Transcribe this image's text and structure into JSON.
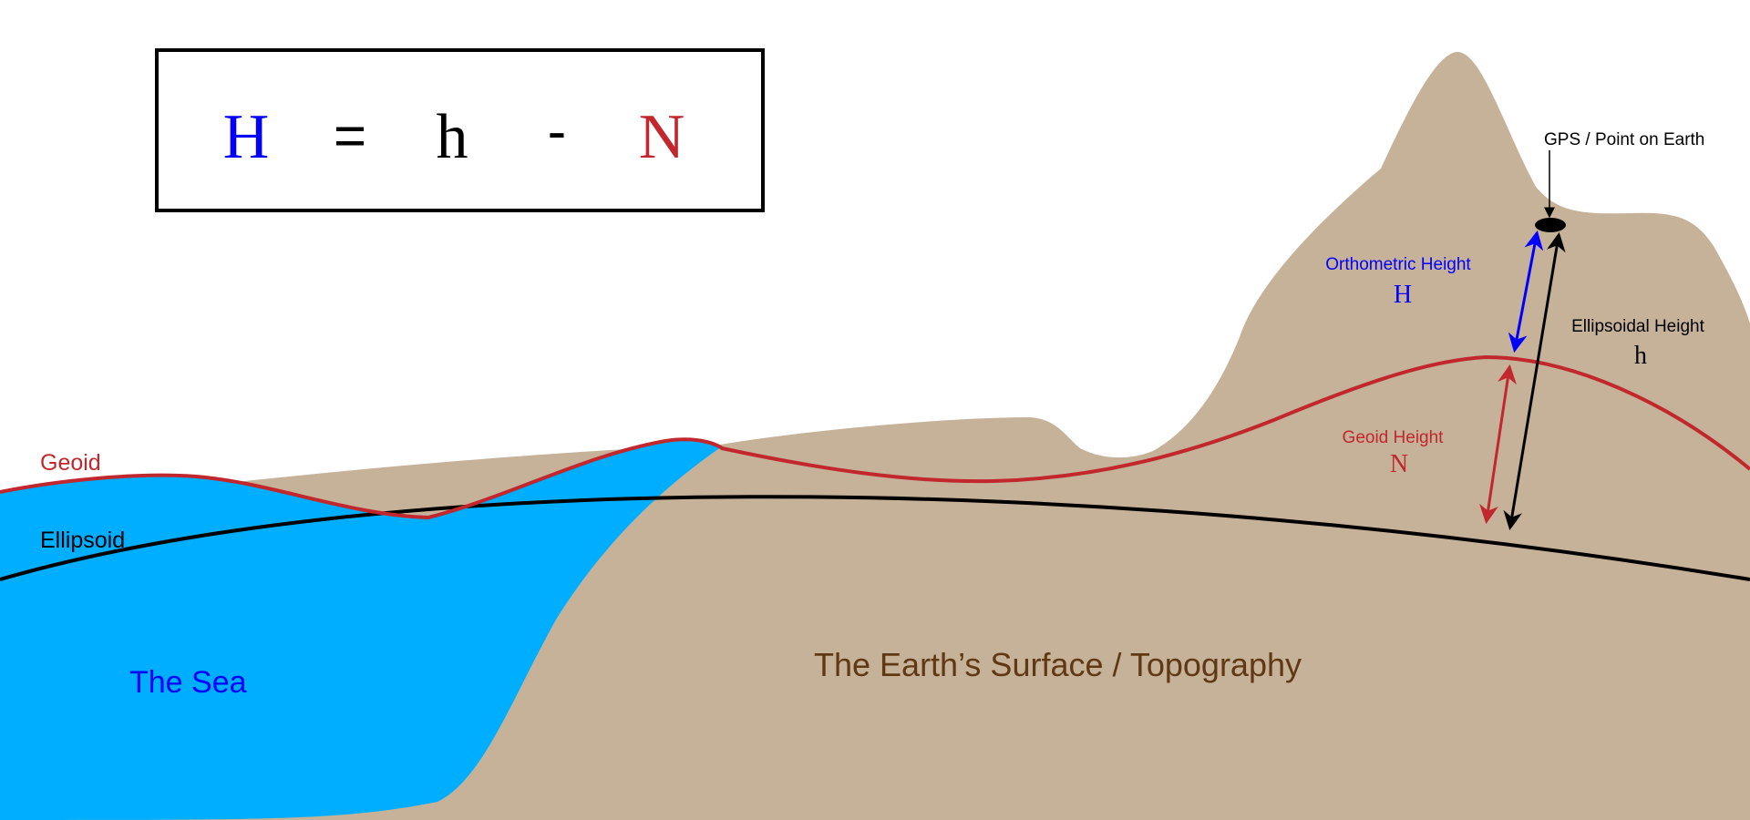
{
  "formula": {
    "H": "H",
    "equals": "=",
    "h": "h",
    "minus": "-",
    "N": "N"
  },
  "labels": {
    "geoid": "Geoid",
    "ellipsoid": "Ellipsoid",
    "sea": "The Sea",
    "earth_surface": "The Earth’s Surface / Topography",
    "gps_point": "GPS / Point on Earth",
    "orthometric_height": "Orthometric Height",
    "orthometric_symbol": "H",
    "ellipsoidal_height": "Ellipsoidal Height",
    "ellipsoidal_symbol": "h",
    "geoid_height": "Geoid Height",
    "geoid_symbol": "N"
  },
  "colors": {
    "land": "#c6b199",
    "sea": "#00aeff",
    "geoid": "#c1272d",
    "ellipsoid": "#000000",
    "orthometric": "#0000ff",
    "surface_text": "#603813",
    "sea_text": "#0000ff"
  }
}
